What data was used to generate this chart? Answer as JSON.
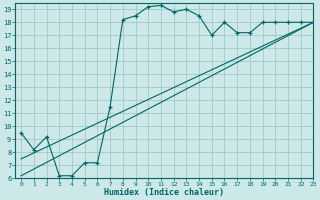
{
  "xlabel": "Humidex (Indice chaleur)",
  "bg_color": "#cce8e8",
  "grid_color": "#a8cccc",
  "line_color": "#006666",
  "xlim": [
    -0.5,
    23
  ],
  "ylim": [
    6,
    19.5
  ],
  "xticks": [
    0,
    1,
    2,
    3,
    4,
    5,
    6,
    7,
    8,
    9,
    10,
    11,
    12,
    13,
    14,
    15,
    16,
    17,
    18,
    19,
    20,
    21,
    22,
    23
  ],
  "yticks": [
    6,
    7,
    8,
    9,
    10,
    11,
    12,
    13,
    14,
    15,
    16,
    17,
    18,
    19
  ],
  "curve1_x": [
    0,
    1,
    2,
    3,
    4,
    5,
    6,
    7,
    8,
    9,
    10,
    11,
    12,
    13,
    14,
    15,
    16,
    17,
    18,
    19,
    20,
    21,
    22,
    23
  ],
  "curve1_y": [
    9.5,
    8.2,
    9.2,
    6.2,
    6.2,
    7.2,
    7.2,
    11.5,
    18.2,
    18.5,
    19.2,
    19.3,
    18.8,
    19.0,
    18.5,
    17.0,
    18.0,
    17.2,
    17.2,
    18.0,
    18.0,
    18.0,
    18.0,
    18.0
  ],
  "curve2_x": [
    0,
    23
  ],
  "curve2_y": [
    6.2,
    18.0
  ],
  "curve3_x": [
    0,
    23
  ],
  "curve3_y": [
    7.5,
    18.0
  ]
}
